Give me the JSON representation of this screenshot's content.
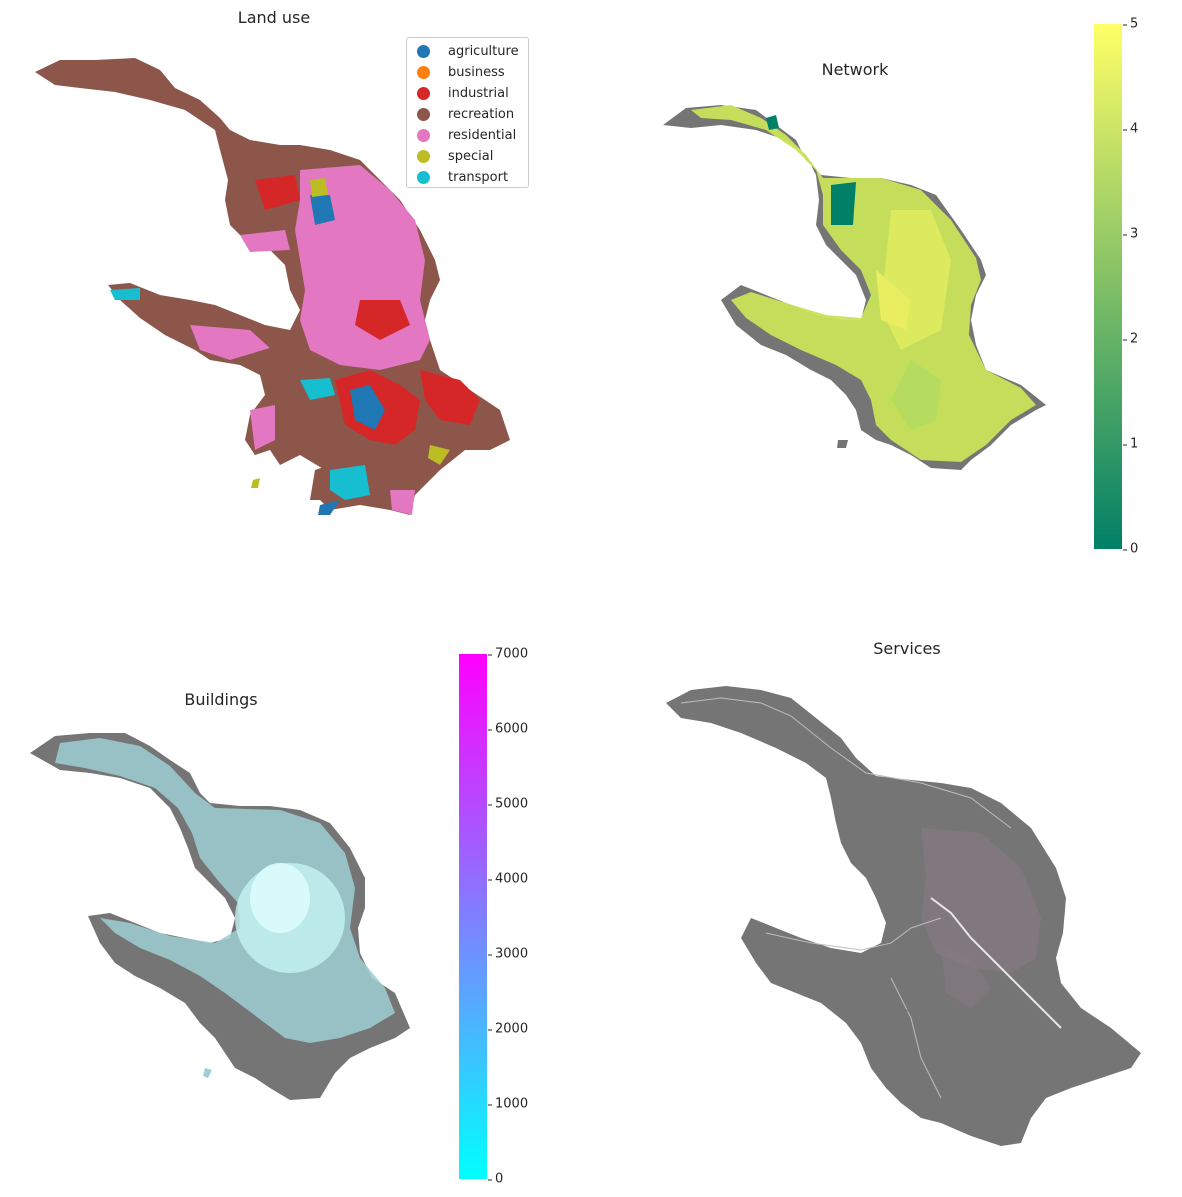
{
  "panels": {
    "landuse": {
      "title": "Land use",
      "legend": [
        {
          "label": "agriculture",
          "color": "#1f77b4"
        },
        {
          "label": "business",
          "color": "#ff7f0e"
        },
        {
          "label": "industrial",
          "color": "#d62728"
        },
        {
          "label": "recreation",
          "color": "#8c564b"
        },
        {
          "label": "residential",
          "color": "#e377c2"
        },
        {
          "label": "special",
          "color": "#bcbd22"
        },
        {
          "label": "transport",
          "color": "#17becf"
        }
      ]
    },
    "network": {
      "title": "Network",
      "colorbar": {
        "colormap": "summer",
        "min": 0,
        "max": 5,
        "ticks": [
          "0",
          "1",
          "2",
          "3",
          "4",
          "5"
        ]
      }
    },
    "buildings": {
      "title": "Buildings",
      "colorbar": {
        "colormap": "cool",
        "min": 0,
        "max": 7000,
        "ticks": [
          "0",
          "1000",
          "2000",
          "3000",
          "4000",
          "5000",
          "6000",
          "7000"
        ]
      }
    },
    "services": {
      "title": "Services"
    }
  },
  "colors": {
    "base_fill": "#757575",
    "network_low": "#008066",
    "network_high": "#ffff66",
    "buildings_low": "#00ffff",
    "buildings_high": "#ff00ff"
  }
}
